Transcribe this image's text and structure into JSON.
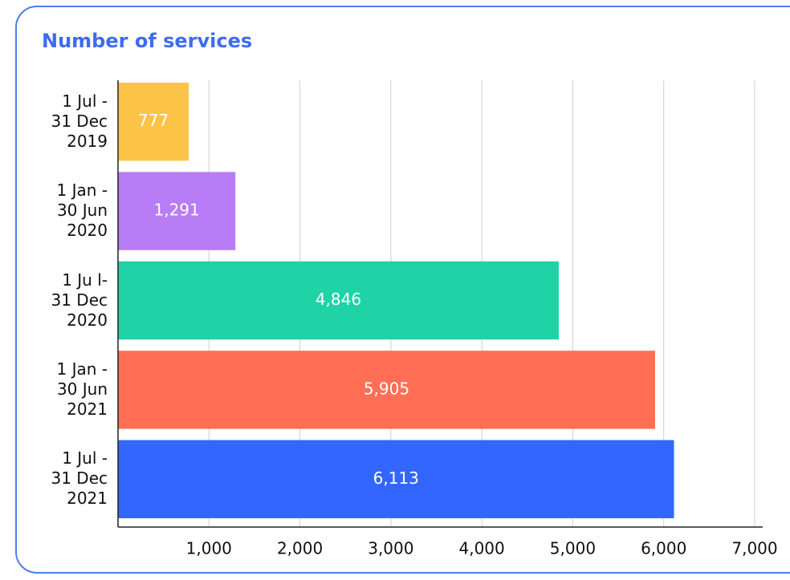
{
  "chart_data": {
    "type": "bar",
    "orientation": "horizontal",
    "title": "Number of services",
    "categories": [
      "1 Jul -\n31 Dec\n2019",
      "1 Jan -\n30 Jun\n2020",
      "1 Ju l-\n31 Dec\n2020",
      "1 Jan -\n30 Jun\n2021",
      "1 Jul -\n31 Dec\n2021"
    ],
    "values": [
      777,
      1291,
      4846,
      5905,
      6113
    ],
    "value_labels": [
      "777",
      "1,291",
      "4,846",
      "5,905",
      "6,113"
    ],
    "colors": [
      "#fbc446",
      "#b87cf6",
      "#1fd3a6",
      "#ff6e55",
      "#3366ff"
    ],
    "xlim": [
      0,
      7000
    ],
    "xticks": [
      {
        "value": 1000,
        "label": "1,000"
      },
      {
        "value": 2000,
        "label": "2,000"
      },
      {
        "value": 3000,
        "label": "3,000"
      },
      {
        "value": 4000,
        "label": "4,000"
      },
      {
        "value": 5000,
        "label": "5,000"
      },
      {
        "value": 6000,
        "label": "6,000"
      },
      {
        "value": 7000,
        "label": "7,000"
      }
    ],
    "grid": true
  }
}
